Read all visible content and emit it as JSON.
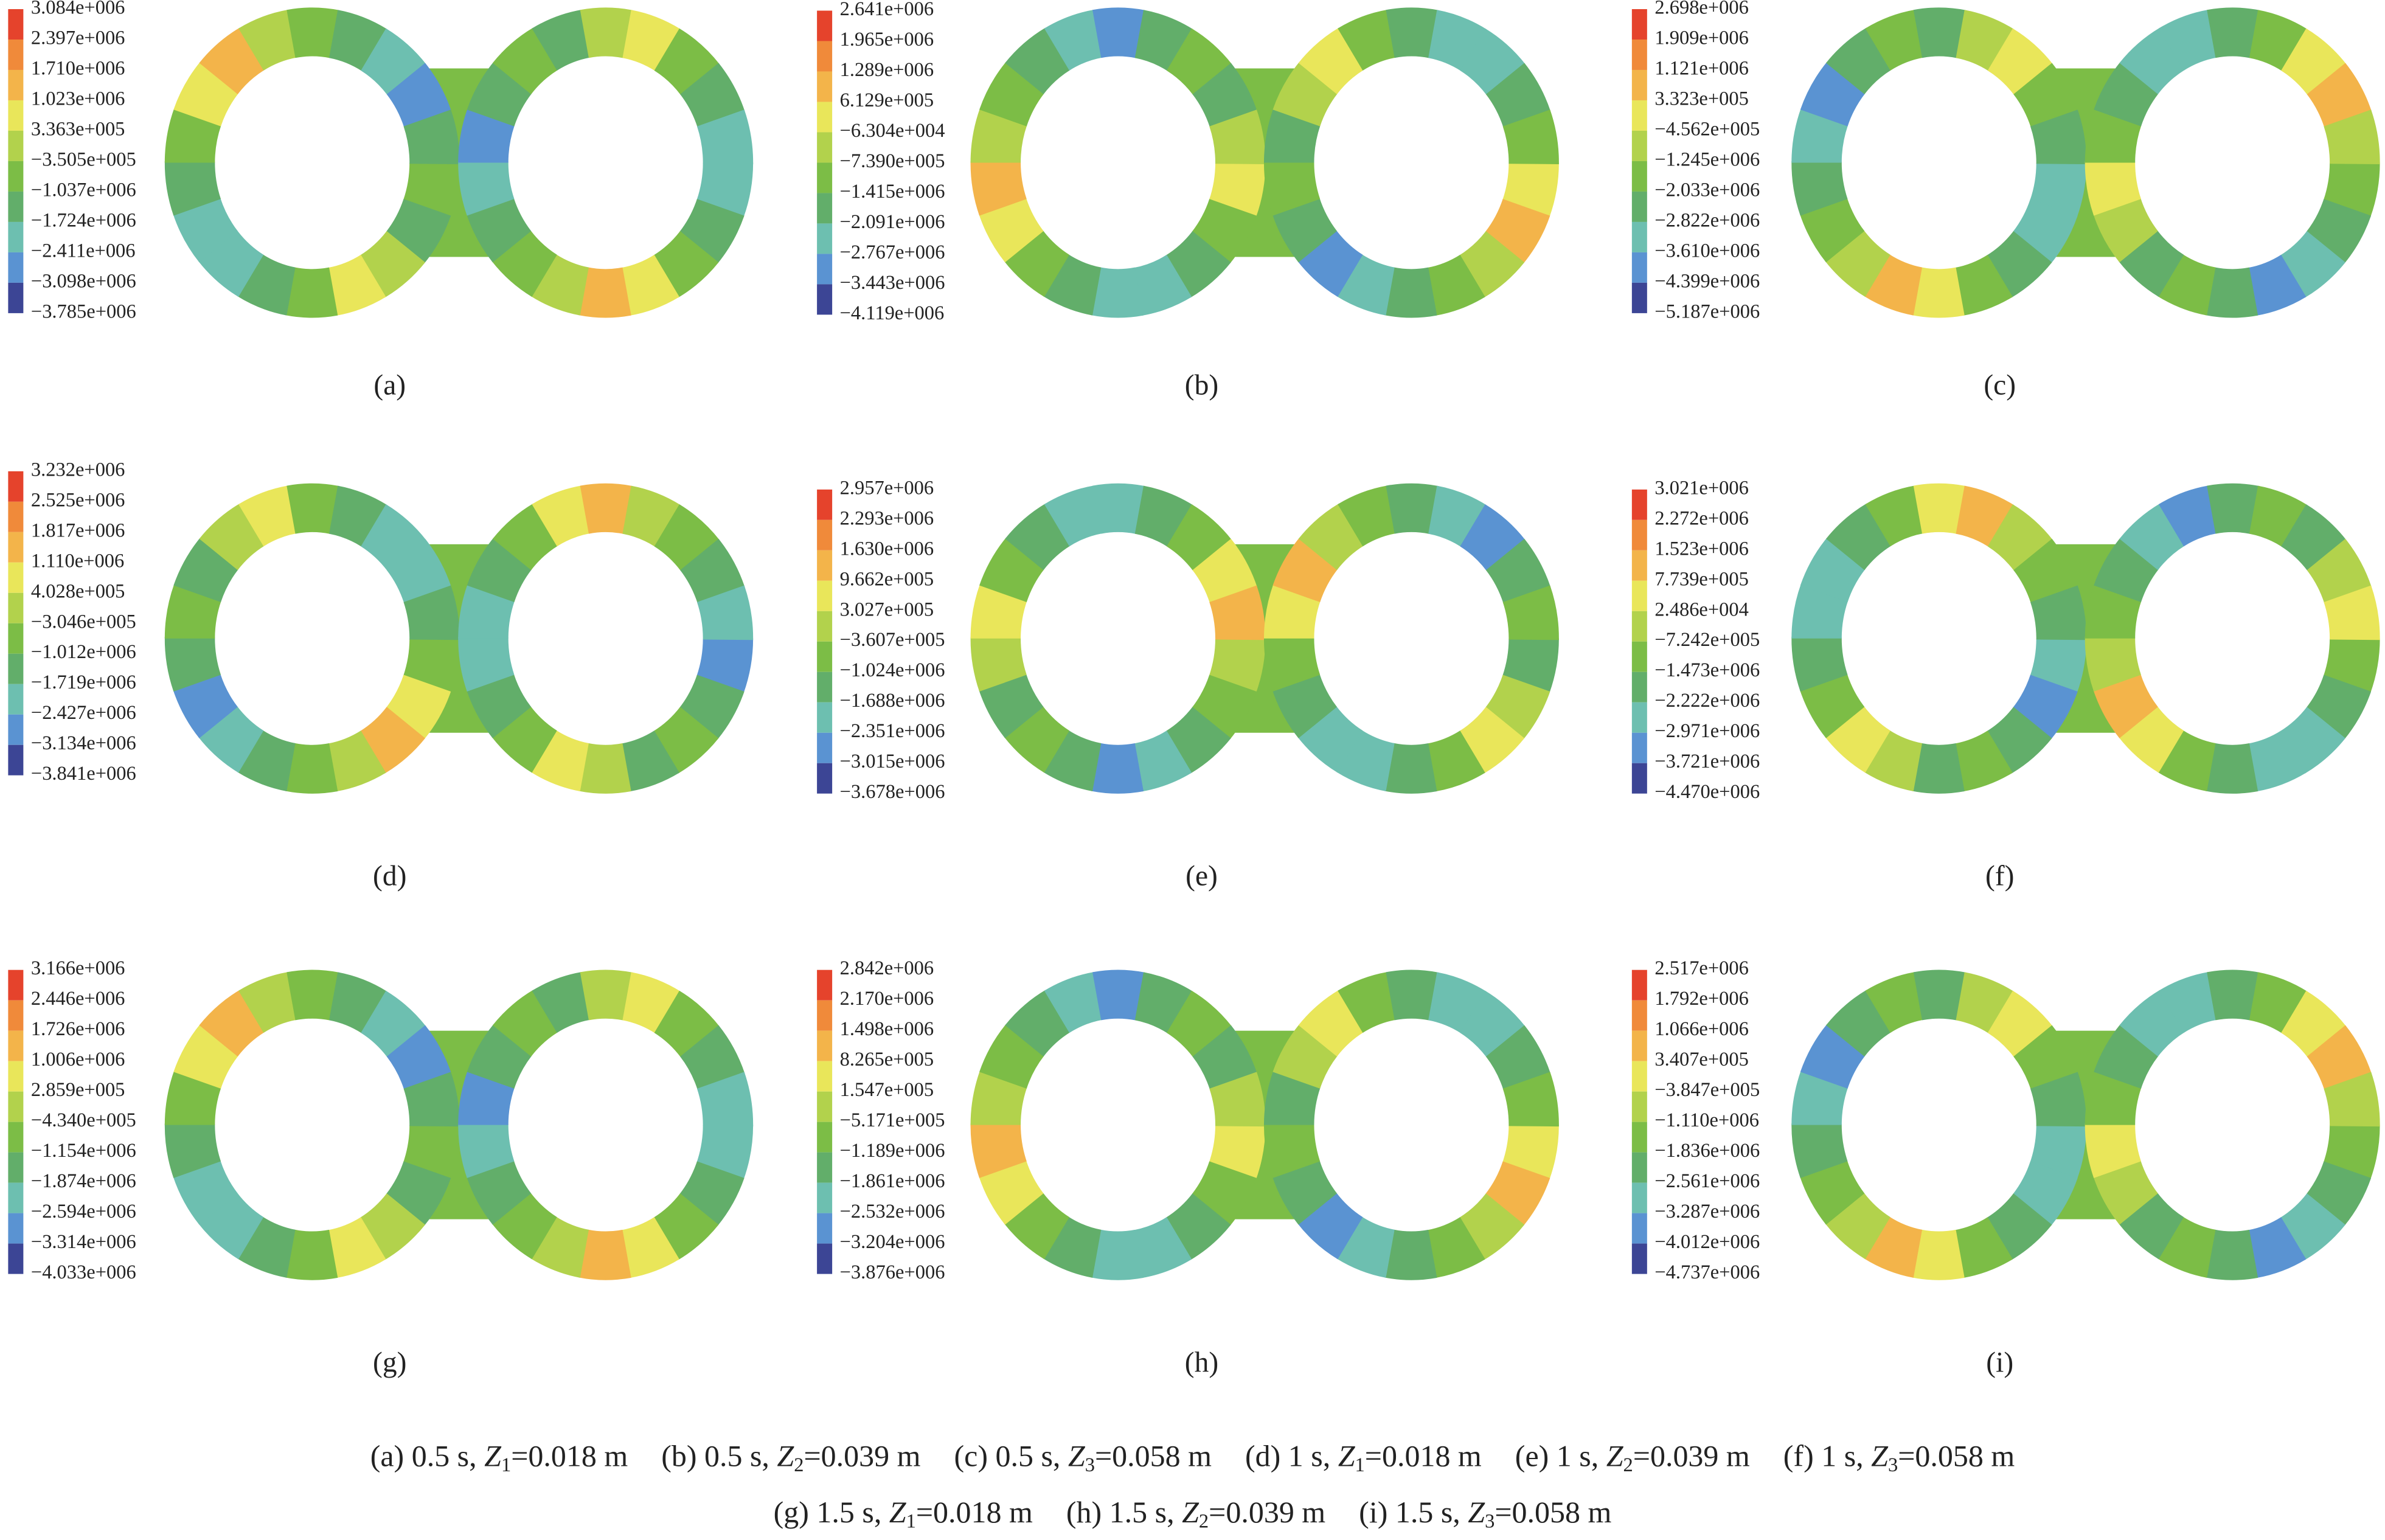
{
  "panels": [
    {
      "label": "(a)",
      "legend": [
        "3.084e+006",
        "2.397e+006",
        "1.710e+006",
        "1.023e+006",
        "3.363e+005",
        "−3.505e+005",
        "−1.037e+006",
        "−1.724e+006",
        "−2.411e+006",
        "−3.098e+006",
        "−3.785e+006"
      ]
    },
    {
      "label": "(b)",
      "legend": [
        "2.641e+006",
        "1.965e+006",
        "1.289e+006",
        "6.129e+005",
        "−6.304e+004",
        "−7.390e+005",
        "−1.415e+006",
        "−2.091e+006",
        "−2.767e+006",
        "−3.443e+006",
        "−4.119e+006"
      ]
    },
    {
      "label": "(c)",
      "legend": [
        "2.698e+006",
        "1.909e+006",
        "1.121e+006",
        "3.323e+005",
        "−4.562e+005",
        "−1.245e+006",
        "−2.033e+006",
        "−2.822e+006",
        "−3.610e+006",
        "−4.399e+006",
        "−5.187e+006"
      ]
    },
    {
      "label": "(d)",
      "legend": [
        "3.232e+006",
        "2.525e+006",
        "1.817e+006",
        "1.110e+006",
        "4.028e+005",
        "−3.046e+005",
        "−1.012e+006",
        "−1.719e+006",
        "−2.427e+006",
        "−3.134e+006",
        "−3.841e+006"
      ]
    },
    {
      "label": "(e)",
      "legend": [
        "2.957e+006",
        "2.293e+006",
        "1.630e+006",
        "9.662e+005",
        "3.027e+005",
        "−3.607e+005",
        "−1.024e+006",
        "−1.688e+006",
        "−2.351e+006",
        "−3.015e+006",
        "−3.678e+006"
      ]
    },
    {
      "label": "(f)",
      "legend": [
        "3.021e+006",
        "2.272e+006",
        "1.523e+006",
        "7.739e+005",
        "2.486e+004",
        "−7.242e+005",
        "−1.473e+006",
        "−2.222e+006",
        "−2.971e+006",
        "−3.721e+006",
        "−4.470e+006"
      ]
    },
    {
      "label": "(g)",
      "legend": [
        "3.166e+006",
        "2.446e+006",
        "1.726e+006",
        "1.006e+006",
        "2.859e+005",
        "−4.340e+005",
        "−1.154e+006",
        "−1.874e+006",
        "−2.594e+006",
        "−3.314e+006",
        "−4.033e+006"
      ]
    },
    {
      "label": "(h)",
      "legend": [
        "2.842e+006",
        "2.170e+006",
        "1.498e+006",
        "8.265e+005",
        "1.547e+005",
        "−5.171e+005",
        "−1.189e+006",
        "−1.861e+006",
        "−2.532e+006",
        "−3.204e+006",
        "−3.876e+006"
      ]
    },
    {
      "label": "(i)",
      "legend": [
        "2.517e+006",
        "1.792e+006",
        "1.066e+006",
        "3.407e+005",
        "−3.847e+005",
        "−1.110e+006",
        "−1.836e+006",
        "−2.561e+006",
        "−3.287e+006",
        "−4.012e+006",
        "−4.737e+006"
      ]
    }
  ],
  "caption": [
    [
      {
        "text": "(a) 0.5 s, ",
        "var": "Z",
        "sub": "1",
        "rest": "=0.018 m"
      },
      {
        "text": "(b) 0.5 s, ",
        "var": "Z",
        "sub": "2",
        "rest": "=0.039 m"
      },
      {
        "text": "(c) 0.5 s, ",
        "var": "Z",
        "sub": "3",
        "rest": "=0.058 m"
      },
      {
        "text": "(d) 1 s, ",
        "var": "Z",
        "sub": "1",
        "rest": "=0.018 m"
      },
      {
        "text": "(e) 1 s, ",
        "var": "Z",
        "sub": "2",
        "rest": "=0.039 m"
      },
      {
        "text": "(f) 1 s, ",
        "var": "Z",
        "sub": "3",
        "rest": "=0.058 m"
      }
    ],
    [
      {
        "text": "(g) 1.5 s, ",
        "var": "Z",
        "sub": "1",
        "rest": "=0.018 m"
      },
      {
        "text": "(h) 1.5 s, ",
        "var": "Z",
        "sub": "2",
        "rest": "=0.039 m"
      },
      {
        "text": "(i) 1.5 s, ",
        "var": "Z",
        "sub": "3",
        "rest": "=0.058 m"
      }
    ]
  ]
}
